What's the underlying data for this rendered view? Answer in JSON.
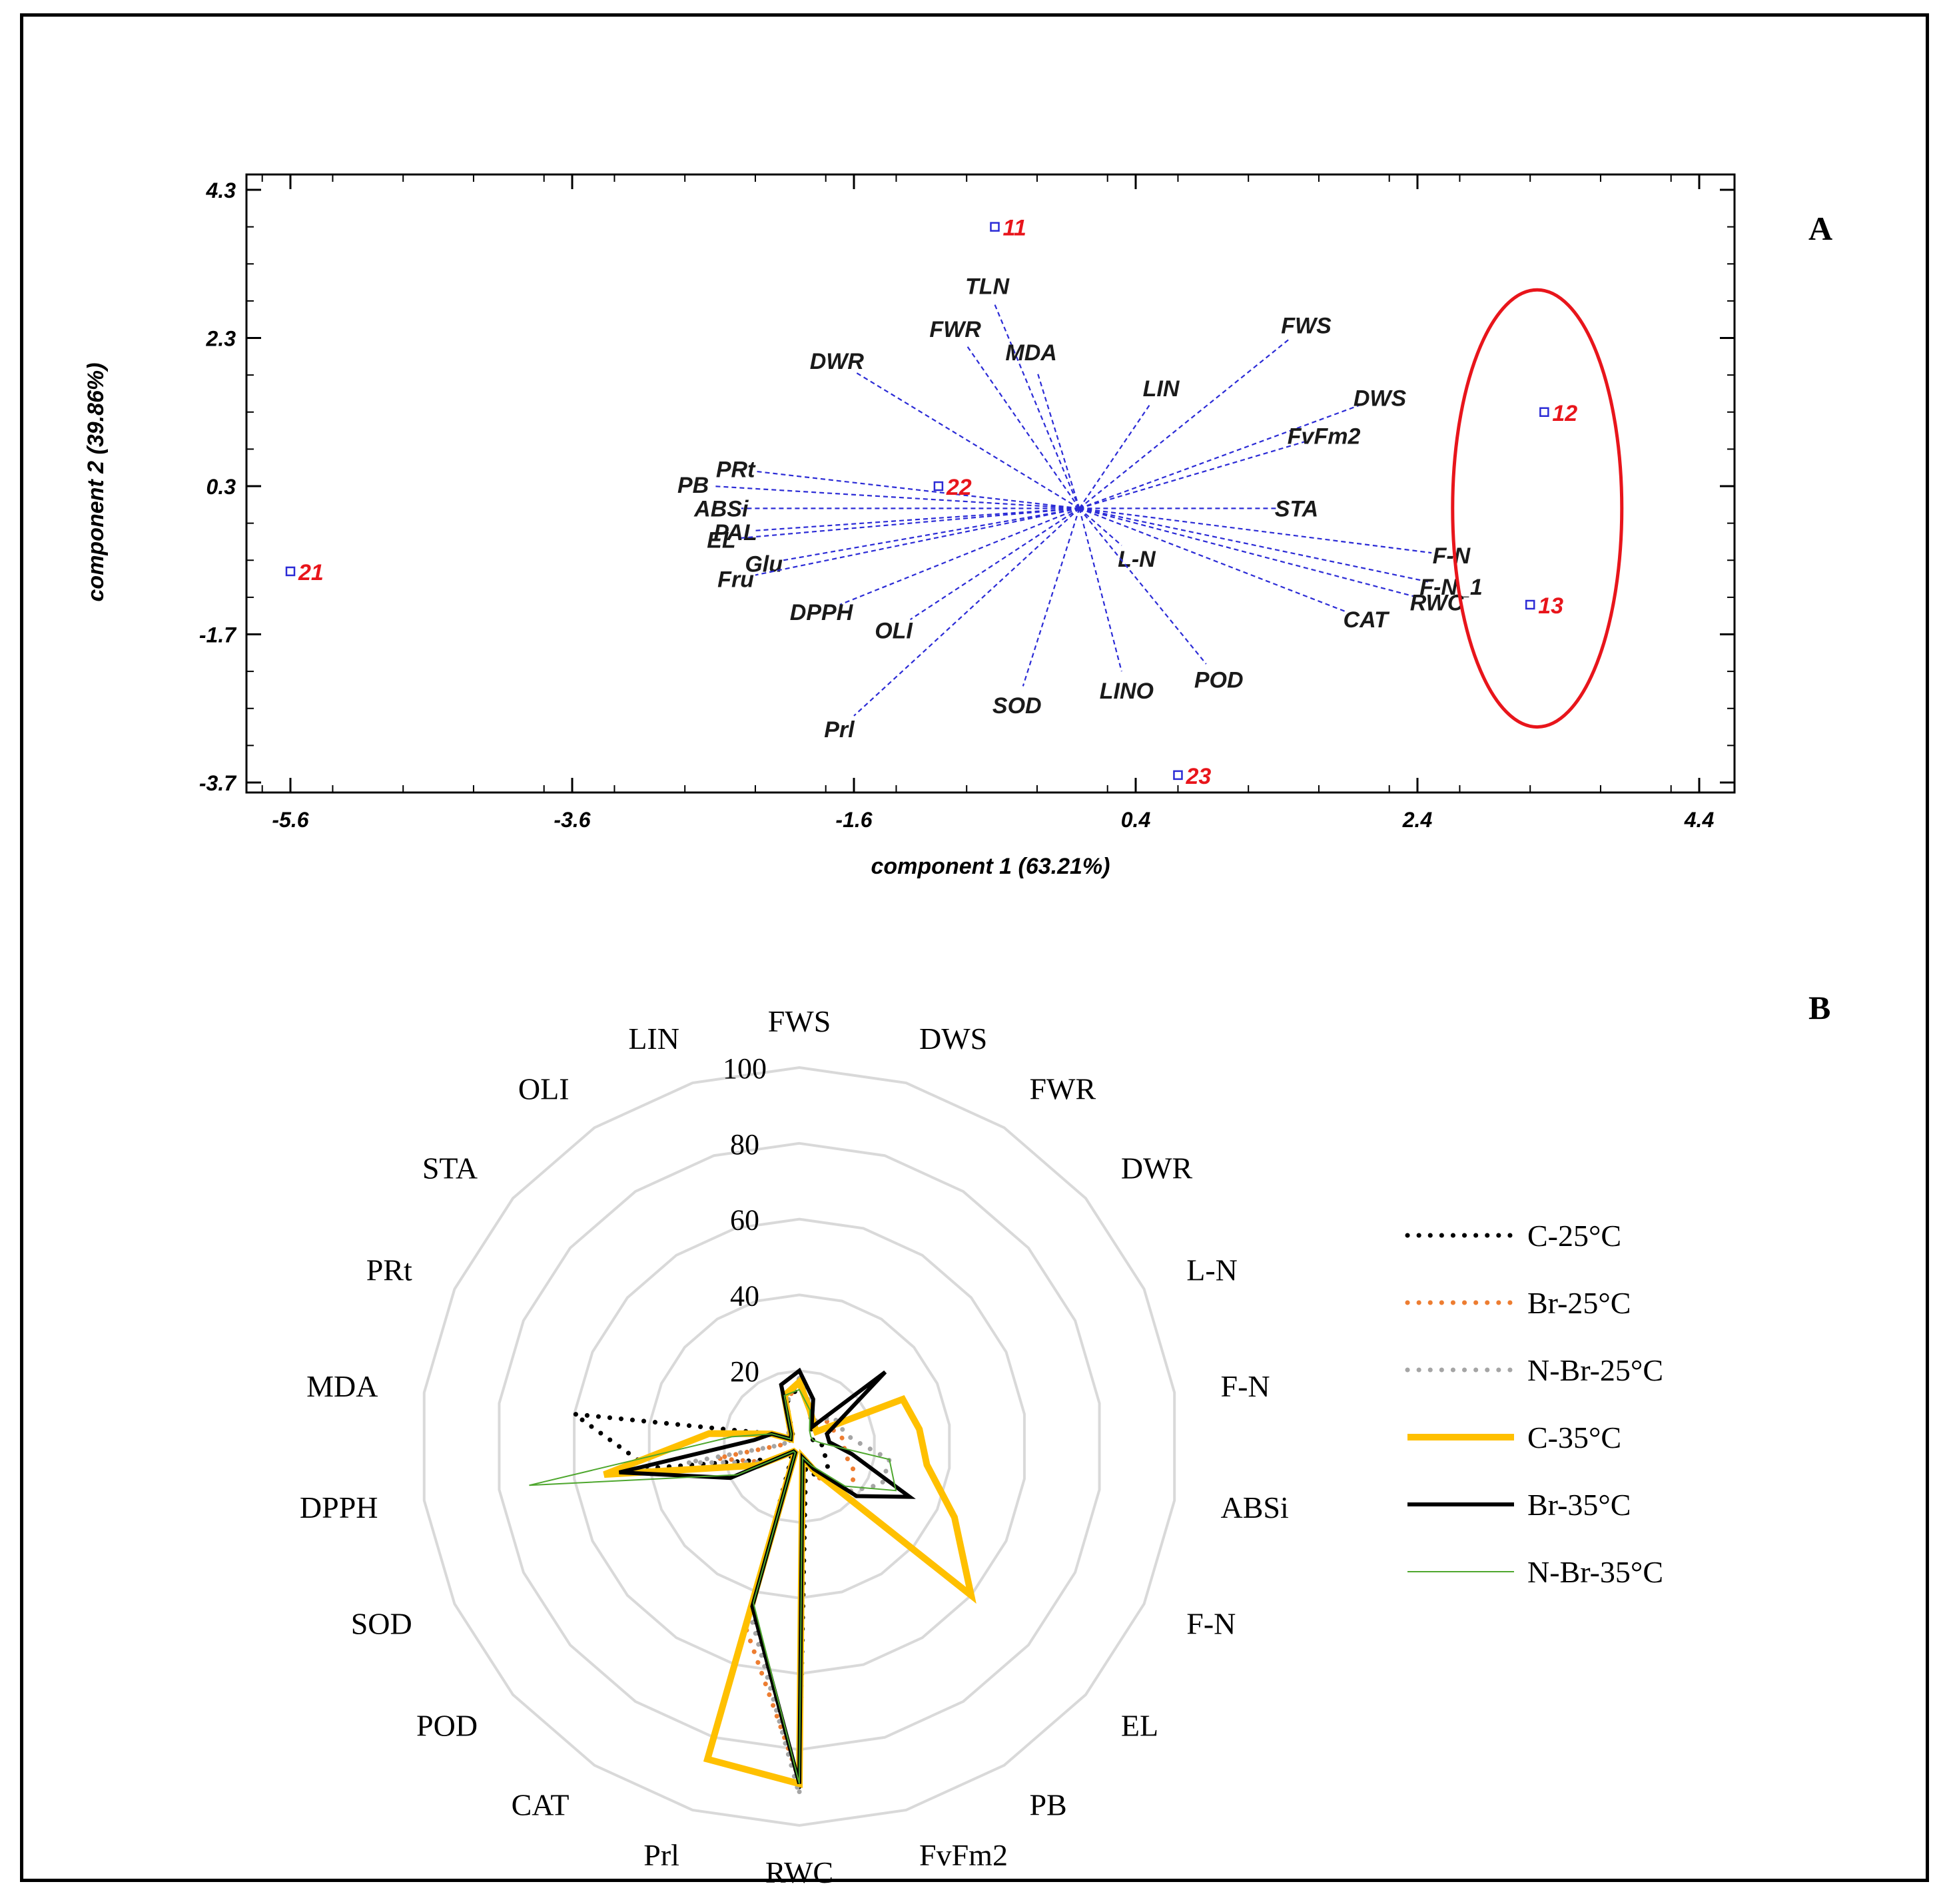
{
  "panel_a_letter": "A",
  "panel_b_letter": "B",
  "chart_data": [
    {
      "type": "scatter",
      "subtype": "biplot",
      "title": "",
      "xlabel": "component 1 (63.21%)",
      "ylabel": "component 2 (39.86%)",
      "xlim": [
        -5.9,
        4.7
      ],
      "ylim": [
        -3.9,
        4.5
      ],
      "xticks": [
        "-5.6",
        "-3.6",
        "-1.6",
        "0.4",
        "2.4",
        "4.4"
      ],
      "yticks": [
        "4.3",
        "2.3",
        "0.3",
        "-1.7",
        "-3.7"
      ],
      "origin": [
        0.0,
        0.0
      ],
      "observations": [
        {
          "label": "11",
          "x": -0.6,
          "y": 3.8
        },
        {
          "label": "12",
          "x": 3.3,
          "y": 1.3
        },
        {
          "label": "13",
          "x": 3.2,
          "y": -1.3
        },
        {
          "label": "21",
          "x": -5.6,
          "y": -0.85
        },
        {
          "label": "22",
          "x": -1.0,
          "y": 0.3
        },
        {
          "label": "23",
          "x": 0.7,
          "y": -3.6
        }
      ],
      "loadings": [
        {
          "label": "TLN",
          "x": -0.6,
          "y": 2.75
        },
        {
          "label": "FWR",
          "x": -0.8,
          "y": 2.2
        },
        {
          "label": "MDA",
          "x": -0.3,
          "y": 1.85
        },
        {
          "label": "DWR",
          "x": -1.6,
          "y": 1.85
        },
        {
          "label": "FWS",
          "x": 1.5,
          "y": 2.3
        },
        {
          "label": "DWS",
          "x": 2.0,
          "y": 1.4
        },
        {
          "label": "LIN",
          "x": 0.5,
          "y": 1.4
        },
        {
          "label": "FvFm2",
          "x": 1.6,
          "y": 0.9
        },
        {
          "label": "STA",
          "x": 1.4,
          "y": 0.0
        },
        {
          "label": "PRt",
          "x": -2.3,
          "y": 0.5
        },
        {
          "label": "PB",
          "x": -2.6,
          "y": 0.3
        },
        {
          "label": "ABSi",
          "x": -2.4,
          "y": 0.0
        },
        {
          "label": "PAL",
          "x": -2.3,
          "y": -0.3
        },
        {
          "label": "EL",
          "x": -2.4,
          "y": -0.4
        },
        {
          "label": "Glu",
          "x": -2.1,
          "y": -0.7
        },
        {
          "label": "Fru",
          "x": -2.3,
          "y": -0.9
        },
        {
          "label": "DPPH",
          "x": -1.7,
          "y": -1.3
        },
        {
          "label": "OLI",
          "x": -1.2,
          "y": -1.5
        },
        {
          "label": "F-N",
          "x": 2.5,
          "y": -0.6
        },
        {
          "label": "F-N_1",
          "x": 2.5,
          "y": -1.0
        },
        {
          "label": "L-N",
          "x": 0.3,
          "y": -0.5
        },
        {
          "label": "RWC",
          "x": 2.4,
          "y": -1.2
        },
        {
          "label": "CAT",
          "x": 1.9,
          "y": -1.4
        },
        {
          "label": "POD",
          "x": 0.9,
          "y": -2.1
        },
        {
          "label": "LINO",
          "x": 0.3,
          "y": -2.2
        },
        {
          "label": "SOD",
          "x": -0.4,
          "y": -2.4
        },
        {
          "label": "Prl",
          "x": -1.6,
          "y": -2.8
        }
      ],
      "highlight": {
        "shape": "ellipse",
        "contains": [
          "12",
          "13"
        ],
        "color": "#e8151b"
      },
      "colors": {
        "observation_marker": "#2b2bd6",
        "observation_label": "#e8151b",
        "loading_line": "#2b2bd6",
        "axes": "#000000"
      }
    },
    {
      "type": "radar",
      "title": "",
      "rmax": 100,
      "rticks": [
        "20",
        "40",
        "60",
        "80",
        "100"
      ],
      "axes": [
        "FWS",
        "DWS",
        "FWR",
        "DWR",
        "L-N",
        "F-N",
        "ABSi",
        "F-N",
        "EL",
        "PB",
        "FvFm2",
        "RWC",
        "Prl",
        "CAT",
        "POD",
        "SOD",
        "DPPH",
        "MDA",
        "PRt",
        "STA",
        "OLI",
        "LIN"
      ],
      "series": [
        {
          "name": "C-25°C",
          "color": "#000000",
          "style": "dotted",
          "values": [
            16,
            10,
            6,
            4,
            4,
            6,
            6,
            8,
            10,
            10,
            6,
            90,
            45,
            4,
            3,
            8,
            40,
            60,
            8,
            2,
            3,
            12
          ]
        },
        {
          "name": "Br-25°C",
          "color": "#ed7d31",
          "style": "dotted",
          "values": [
            18,
            11,
            8,
            10,
            10,
            12,
            12,
            16,
            18,
            10,
            4,
            88,
            50,
            2,
            2,
            10,
            22,
            4,
            4,
            4,
            5,
            12
          ]
        },
        {
          "name": "N-Br-25°C",
          "color": "#a5a5a5",
          "style": "dotted",
          "values": [
            18,
            11,
            8,
            12,
            12,
            14,
            24,
            24,
            18,
            8,
            4,
            92,
            46,
            2,
            2,
            10,
            30,
            4,
            4,
            4,
            5,
            12
          ]
        },
        {
          "name": "C-35°C",
          "color": "#ffc000",
          "style": "solid-thick",
          "values": [
            17,
            10,
            7,
            6,
            30,
            32,
            34,
            45,
            60,
            8,
            3,
            89,
            86,
            2,
            2,
            12,
            52,
            24,
            8,
            3,
            4,
            14
          ]
        },
        {
          "name": "Br-35°C",
          "color": "#000000",
          "style": "solid",
          "values": [
            20,
            13,
            6,
            30,
            8,
            8,
            14,
            32,
            20,
            7,
            3,
            89,
            44,
            2,
            2,
            20,
            48,
            12,
            8,
            3,
            4,
            17
          ]
        },
        {
          "name": "N-Br-35°C",
          "color": "#4ea72e",
          "style": "solid-thin",
          "values": [
            15,
            10,
            5,
            4,
            4,
            6,
            24,
            28,
            16,
            6,
            3,
            89,
            43,
            2,
            2,
            18,
            72,
            18,
            8,
            3,
            4,
            14
          ]
        }
      ],
      "legend_position": "right",
      "colors": {
        "grid": "#d9d9d9"
      }
    }
  ]
}
